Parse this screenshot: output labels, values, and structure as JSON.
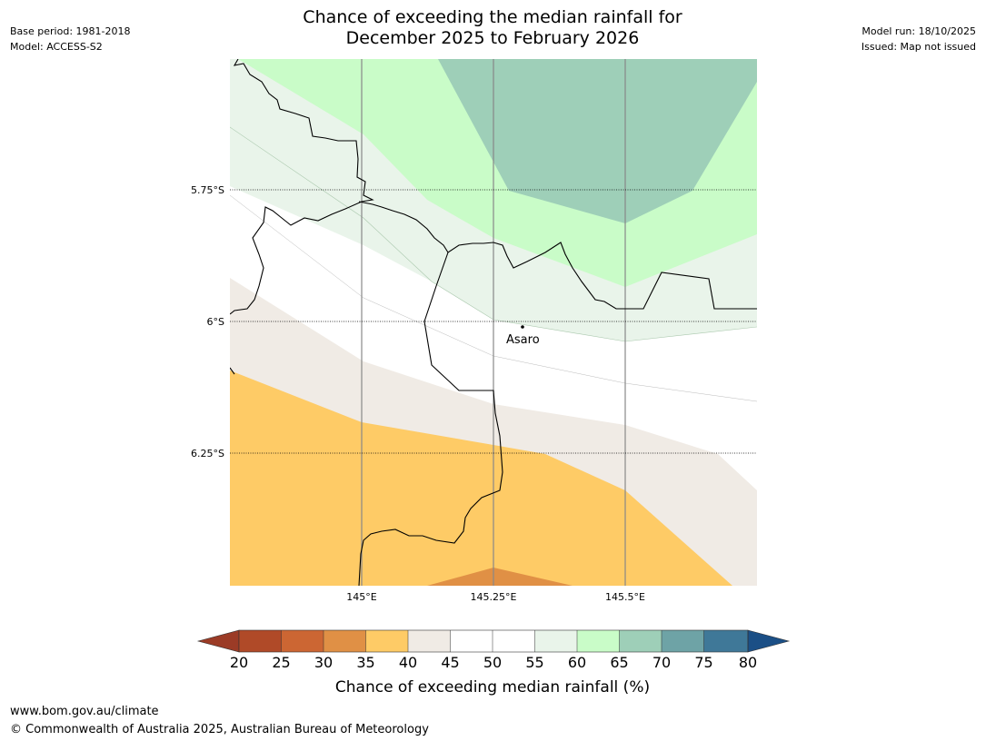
{
  "title_line1": "Chance of exceeding the median rainfall for",
  "title_line2": "December 2025 to February 2026",
  "meta_left": [
    "Base period: 1981-2018",
    "Model: ACCESS-S2"
  ],
  "meta_right": [
    "Model run: 18/10/2025",
    "Issued: Map not issued"
  ],
  "map": {
    "lat_labels": [
      "5.75°S",
      "6°S",
      "6.25°S"
    ],
    "lon_labels": [
      "145°E",
      "145.25°E",
      "145.5°E"
    ],
    "place": "Asaro"
  },
  "colorbar": {
    "ticks": [
      "20",
      "25",
      "30",
      "35",
      "40",
      "45",
      "50",
      "55",
      "60",
      "65",
      "70",
      "75",
      "80"
    ],
    "label": "Chance of exceeding median rainfall (%)",
    "colors": {
      "below20": "#9b3b26",
      "20-25": "#b04a28",
      "25-30": "#cc6633",
      "30-35": "#e09045",
      "35-40": "#fecb66",
      "40-45": "#f0ebe5",
      "45-50": "#ffffff",
      "50-55": "#ffffff",
      "55-60": "#e9f4ea",
      "60-65": "#c9fcc8",
      "65-70": "#9ecfb8",
      "70-75": "#6ea3a6",
      "75-80": "#3f7898",
      "above80": "#1b4f86"
    }
  },
  "footer": {
    "url": "www.bom.gov.au/climate",
    "copyright": "© Commonwealth of Australia 2025, Australian Bureau of Meteorology"
  }
}
